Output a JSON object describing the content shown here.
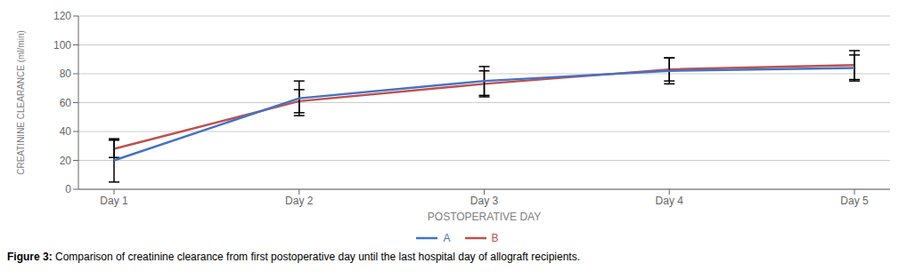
{
  "chart_data": {
    "type": "line",
    "categories": [
      "Day 1",
      "Day 2",
      "Day 3",
      "Day 4",
      "Day 5"
    ],
    "series": [
      {
        "name": "A",
        "color": "#4472C4",
        "values": [
          20,
          63,
          75,
          82,
          84
        ],
        "error": [
          15,
          12,
          10,
          9,
          9
        ]
      },
      {
        "name": "B",
        "color": "#C0504D",
        "values": [
          28,
          61,
          73,
          83,
          86
        ],
        "error": [
          6,
          8,
          9,
          8,
          10
        ]
      }
    ],
    "xlabel": "POSTOPERATIVE DAY",
    "ylabel": "CREATININE CLEARANCE (ml/min)",
    "ylim": [
      0,
      120
    ],
    "yticks": [
      0,
      20,
      40,
      60,
      80,
      100,
      120
    ],
    "grid": true,
    "legend": "bottom",
    "caption": {
      "label": "Figure 3:",
      "text": "Comparison of creatinine clearance from first postoperative day until the last hospital day of allograft recipients."
    }
  }
}
